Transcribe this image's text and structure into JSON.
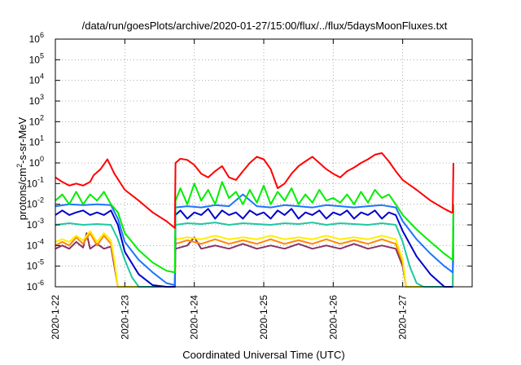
{
  "chart_data": {
    "type": "line",
    "title": "/data/run/goesPlots/archive/2020-01-27/15:00/flux/../flux/5daysMoonFluxes.txt",
    "xlabel": "Coordinated Universal Time (UTC)",
    "ylabel": "protons/cm2-s-sr-MeV",
    "ylabel_parts": {
      "pre": "protons/cm",
      "sup": "2",
      "post": "-s-sr-MeV"
    },
    "yscale": "log",
    "ylim": [
      1e-06,
      1000000.0
    ],
    "xlim": [
      0,
      6.0
    ],
    "grid": true,
    "x_tick_labels": [
      "2020-1-22",
      "2020-1-23",
      "2020-1-24",
      "2020-1-25",
      "2020-1-26",
      "2020-1-27"
    ],
    "x_tick_positions": [
      0,
      1,
      2,
      3,
      4,
      5
    ],
    "y_tick_labels": [
      {
        "base": "10",
        "exp": "-6"
      },
      {
        "base": "10",
        "exp": "-5"
      },
      {
        "base": "10",
        "exp": "-4"
      },
      {
        "base": "10",
        "exp": "-3"
      },
      {
        "base": "10",
        "exp": "-2"
      },
      {
        "base": "10",
        "exp": "-1"
      },
      {
        "base": "10",
        "exp": "0"
      },
      {
        "base": "10",
        "exp": "1"
      },
      {
        "base": "10",
        "exp": "2"
      },
      {
        "base": "10",
        "exp": "3"
      },
      {
        "base": "10",
        "exp": "4"
      },
      {
        "base": "10",
        "exp": "5"
      },
      {
        "base": "10",
        "exp": "6"
      }
    ],
    "series": [
      {
        "color": "#ff0000",
        "x": [
          0,
          0.1,
          0.2,
          0.3,
          0.4,
          0.5,
          0.55,
          0.65,
          0.75,
          0.85,
          1.0,
          1.2,
          1.4,
          1.6,
          1.72,
          1.73,
          1.8,
          1.9,
          2.0,
          2.1,
          2.2,
          2.3,
          2.4,
          2.5,
          2.6,
          2.7,
          2.8,
          2.9,
          3.0,
          3.1,
          3.2,
          3.3,
          3.4,
          3.5,
          3.6,
          3.7,
          3.8,
          3.9,
          4.0,
          4.1,
          4.2,
          4.3,
          4.4,
          4.5,
          4.6,
          4.7,
          4.8,
          4.9,
          5.0,
          5.2,
          5.4,
          5.6,
          5.7,
          5.72,
          5.73
        ],
        "values": [
          0.2,
          0.12,
          0.08,
          0.1,
          0.08,
          0.12,
          0.25,
          0.5,
          1.5,
          0.3,
          0.05,
          0.015,
          0.004,
          0.0015,
          0.0007,
          1.0,
          1.6,
          1.4,
          0.8,
          0.3,
          0.2,
          0.4,
          0.7,
          0.2,
          0.15,
          0.4,
          1.0,
          2.0,
          1.5,
          0.5,
          0.06,
          0.1,
          0.3,
          0.7,
          1.2,
          2.0,
          1.0,
          0.5,
          0.3,
          0.2,
          0.4,
          0.6,
          1.0,
          1.5,
          2.5,
          3.0,
          1.2,
          0.4,
          0.15,
          0.05,
          0.015,
          0.006,
          0.004,
          0.004,
          1.0
        ]
      },
      {
        "color": "#00ee00",
        "x": [
          0,
          0.1,
          0.2,
          0.3,
          0.4,
          0.5,
          0.6,
          0.7,
          0.8,
          0.9,
          1.0,
          1.2,
          1.4,
          1.6,
          1.72,
          1.73,
          1.8,
          1.9,
          2.0,
          2.1,
          2.2,
          2.3,
          2.4,
          2.5,
          2.6,
          2.7,
          2.8,
          2.9,
          3.0,
          3.1,
          3.2,
          3.3,
          3.4,
          3.5,
          3.6,
          3.7,
          3.8,
          3.9,
          4.0,
          4.1,
          4.2,
          4.3,
          4.4,
          4.5,
          4.6,
          4.7,
          4.8,
          4.9,
          5.0,
          5.2,
          5.4,
          5.6,
          5.72,
          5.73
        ],
        "values": [
          0.015,
          0.03,
          0.01,
          0.04,
          0.01,
          0.03,
          0.015,
          0.04,
          0.01,
          0.004,
          0.0004,
          6e-05,
          1.5e-05,
          6e-06,
          5e-06,
          0.015,
          0.06,
          0.01,
          0.1,
          0.015,
          0.05,
          0.01,
          0.12,
          0.02,
          0.04,
          0.01,
          0.05,
          0.012,
          0.08,
          0.01,
          0.04,
          0.015,
          0.06,
          0.01,
          0.03,
          0.012,
          0.05,
          0.015,
          0.02,
          0.012,
          0.03,
          0.01,
          0.04,
          0.012,
          0.05,
          0.02,
          0.03,
          0.01,
          0.003,
          0.0006,
          0.00015,
          4e-05,
          2e-05,
          0.01
        ]
      },
      {
        "color": "#1e74ff",
        "x": [
          0,
          0.2,
          0.4,
          0.6,
          0.8,
          0.9,
          1.0,
          1.2,
          1.4,
          1.6,
          1.72,
          1.73,
          1.9,
          2.1,
          2.3,
          2.5,
          2.7,
          2.9,
          3.1,
          3.3,
          3.5,
          3.7,
          3.9,
          4.1,
          4.3,
          4.5,
          4.7,
          4.9,
          5.0,
          5.2,
          5.4,
          5.6,
          5.72,
          5.73
        ],
        "values": [
          0.008,
          0.01,
          0.009,
          0.01,
          0.009,
          0.002,
          0.00015,
          2e-05,
          5e-06,
          1.5e-06,
          1.2e-06,
          0.007,
          0.008,
          0.007,
          0.009,
          0.008,
          0.03,
          0.008,
          0.007,
          0.009,
          0.008,
          0.007,
          0.009,
          0.008,
          0.007,
          0.008,
          0.009,
          0.007,
          0.0015,
          0.0002,
          4e-05,
          1e-05,
          5e-06,
          0.006
        ]
      },
      {
        "color": "#0000cc",
        "x": [
          0,
          0.1,
          0.2,
          0.3,
          0.4,
          0.5,
          0.6,
          0.7,
          0.8,
          0.9,
          1.0,
          1.2,
          1.4,
          1.6,
          1.72,
          1.73,
          1.8,
          1.9,
          2.0,
          2.1,
          2.2,
          2.3,
          2.4,
          2.5,
          2.6,
          2.7,
          2.8,
          2.9,
          3.0,
          3.1,
          3.2,
          3.3,
          3.4,
          3.5,
          3.6,
          3.7,
          3.8,
          3.9,
          4.0,
          4.1,
          4.2,
          4.3,
          4.4,
          4.5,
          4.6,
          4.7,
          4.8,
          4.9,
          5.0,
          5.2,
          5.4,
          5.6,
          5.72
        ],
        "values": [
          0.003,
          0.005,
          0.003,
          0.004,
          0.005,
          0.003,
          0.004,
          0.003,
          0.005,
          0.001,
          5e-05,
          4e-06,
          1.2e-06,
          1e-06,
          1e-06,
          0.003,
          0.005,
          0.002,
          0.004,
          0.003,
          0.006,
          0.002,
          0.005,
          0.003,
          0.004,
          0.002,
          0.005,
          0.003,
          0.004,
          0.002,
          0.005,
          0.003,
          0.006,
          0.002,
          0.004,
          0.003,
          0.005,
          0.002,
          0.004,
          0.003,
          0.005,
          0.002,
          0.004,
          0.003,
          0.005,
          0.002,
          0.004,
          0.003,
          0.0005,
          3e-05,
          4e-06,
          1e-06,
          1e-06
        ]
      },
      {
        "color": "#1ec8a0",
        "x": [
          0,
          0.2,
          0.4,
          0.6,
          0.8,
          0.9,
          1.0,
          1.1,
          1.2,
          1.3,
          1.72,
          1.73,
          1.9,
          2.1,
          2.3,
          2.5,
          2.7,
          2.9,
          3.1,
          3.3,
          3.5,
          3.7,
          3.9,
          4.1,
          4.3,
          4.5,
          4.7,
          4.9,
          5.0,
          5.1,
          5.2,
          5.3,
          5.72,
          5.73
        ],
        "values": [
          0.001,
          0.0012,
          0.001,
          0.0011,
          0.001,
          0.0002,
          2e-05,
          3e-06,
          1e-06,
          9e-07,
          9e-07,
          0.001,
          0.0012,
          0.0011,
          0.0013,
          0.001,
          0.0012,
          0.0011,
          0.001,
          0.0012,
          0.0011,
          0.0013,
          0.001,
          0.0012,
          0.0011,
          0.001,
          0.0012,
          0.001,
          0.00015,
          1e-05,
          1.5e-06,
          9e-07,
          9e-07,
          0.001
        ]
      },
      {
        "color": "#ffee00",
        "x": [
          0,
          0.1,
          0.2,
          0.3,
          0.4,
          0.5,
          0.6,
          0.7,
          0.8,
          0.85,
          0.9,
          1.0,
          1.72,
          1.73,
          1.9,
          2.1,
          2.3,
          2.5,
          2.7,
          2.9,
          3.1,
          3.3,
          3.5,
          3.7,
          3.9,
          4.1,
          4.3,
          4.5,
          4.7,
          4.9,
          5.0,
          5.05,
          5.72,
          5.73
        ],
        "values": [
          0.00015,
          0.0002,
          0.00015,
          0.0003,
          0.00018,
          0.0005,
          0.00015,
          0.0004,
          0.00018,
          2e-05,
          1e-06,
          1e-06,
          1e-06,
          0.0002,
          0.00025,
          0.0002,
          0.0003,
          0.0002,
          0.00025,
          0.0002,
          0.0003,
          0.0002,
          0.00025,
          0.0002,
          0.0003,
          0.0002,
          0.00025,
          0.0002,
          0.0003,
          0.0002,
          2e-05,
          1e-06,
          1e-06,
          0.0002
        ]
      },
      {
        "color": "#ff8800",
        "x": [
          0,
          0.1,
          0.2,
          0.3,
          0.4,
          0.5,
          0.6,
          0.7,
          0.8,
          0.85,
          0.9,
          1.0,
          1.72,
          1.73,
          1.9,
          2.1,
          2.3,
          2.5,
          2.7,
          2.9,
          3.1,
          3.3,
          3.5,
          3.7,
          3.9,
          4.1,
          4.3,
          4.5,
          4.7,
          4.9,
          5.0,
          5.05,
          5.72,
          5.73
        ],
        "values": [
          0.0001,
          0.00015,
          0.0001,
          0.00025,
          0.00012,
          0.0004,
          0.0001,
          0.0003,
          0.00012,
          1.5e-05,
          1e-06,
          1e-06,
          1e-06,
          0.00012,
          0.00018,
          0.00012,
          0.0002,
          0.00012,
          0.00018,
          0.00012,
          0.0002,
          0.00012,
          0.00018,
          0.00012,
          0.0002,
          0.00012,
          0.00018,
          0.00012,
          0.0002,
          0.00012,
          1.5e-05,
          1e-06,
          1e-06,
          0.00012
        ]
      },
      {
        "color": "#883366",
        "x": [
          0,
          0.1,
          0.2,
          0.3,
          0.4,
          0.45,
          0.5,
          0.6,
          0.7,
          0.8,
          0.85,
          0.9,
          1.0,
          1.72,
          1.73,
          1.9,
          2.0,
          2.1,
          2.3,
          2.5,
          2.7,
          2.9,
          3.1,
          3.3,
          3.5,
          3.7,
          3.9,
          4.1,
          4.3,
          4.5,
          4.7,
          4.9,
          5.0,
          5.05,
          5.72,
          5.73
        ],
        "values": [
          7e-05,
          0.0001,
          7e-05,
          0.00015,
          8e-05,
          0.0004,
          7e-05,
          0.00012,
          7e-05,
          9e-05,
          1e-05,
          1e-06,
          1e-06,
          1e-06,
          7e-05,
          0.0001,
          0.00025,
          7e-05,
          0.0001,
          7e-05,
          0.00012,
          7e-05,
          0.0001,
          7e-05,
          0.00012,
          7e-05,
          0.0001,
          7e-05,
          0.00012,
          7e-05,
          0.0001,
          7e-05,
          1e-05,
          1e-06,
          1e-06,
          7e-05
        ]
      }
    ]
  }
}
